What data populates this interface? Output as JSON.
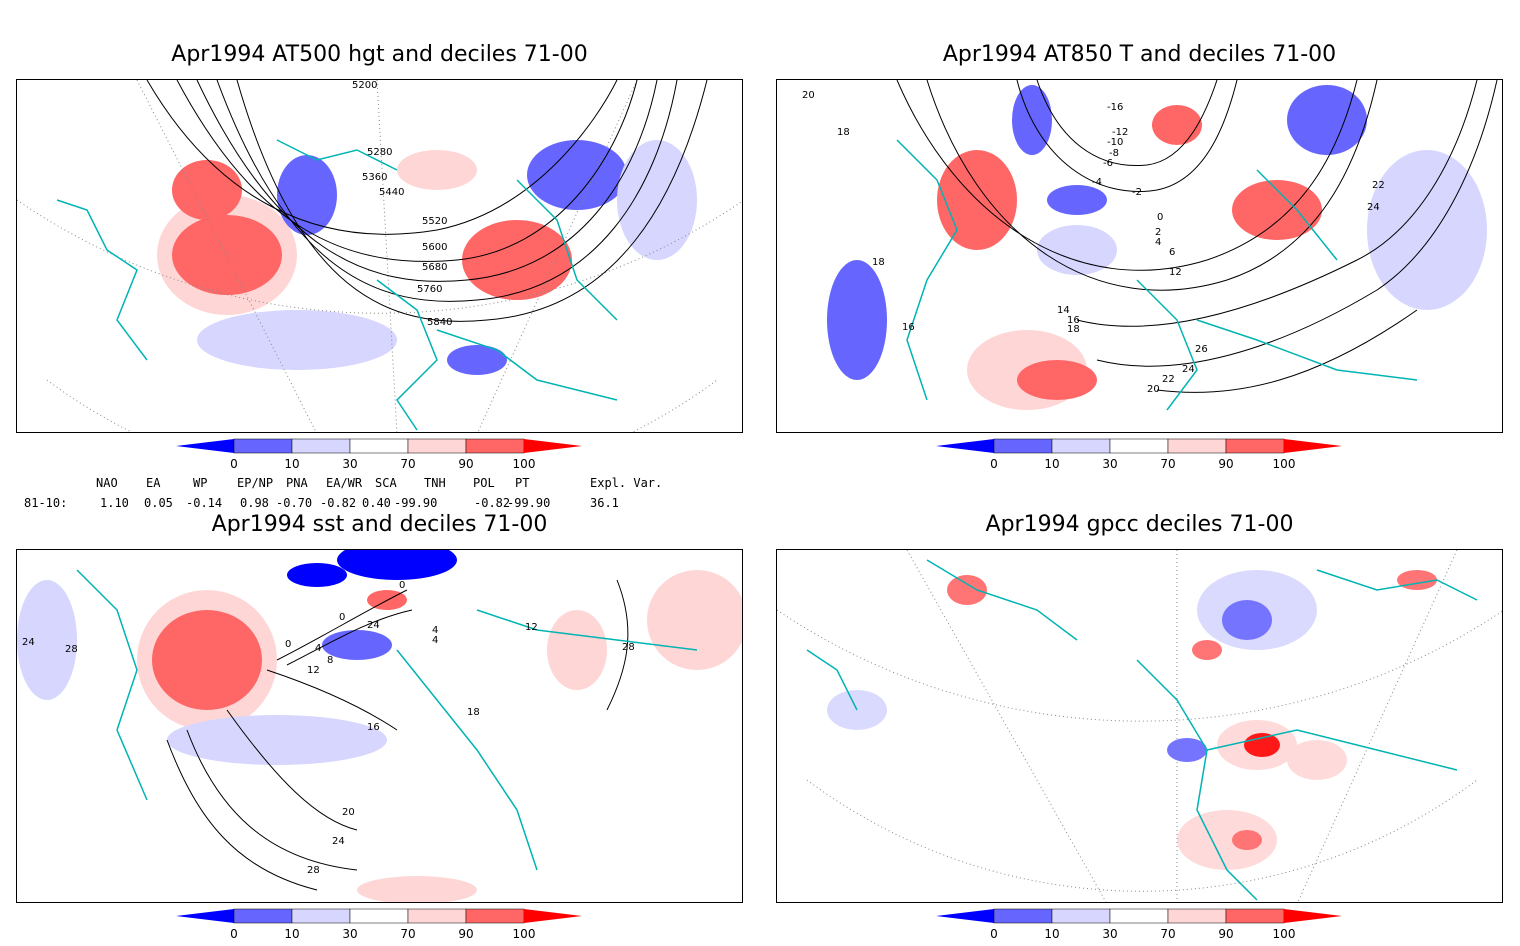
{
  "panels": [
    {
      "id": "p1",
      "title": "Apr1994 AT500 hgt and deciles 71-00",
      "contour_labels": [
        "5200",
        "5280",
        "5360",
        "5440",
        "5520",
        "5600",
        "5680",
        "5760",
        "5840"
      ]
    },
    {
      "id": "p2",
      "title": "Apr1994 AT850 T and deciles 71-00",
      "contour_labels": [
        "-16",
        "-12",
        "-10",
        "-8",
        "-6",
        "-4",
        "-2",
        "0",
        "2",
        "4",
        "6",
        "12",
        "14",
        "16",
        "18",
        "20",
        "22",
        "24",
        "26",
        "20",
        "22",
        "24",
        "16",
        "18",
        "18"
      ]
    },
    {
      "id": "p3",
      "title": "Apr1994 sst and deciles 71-00",
      "contour_labels": [
        "0",
        "0",
        "0",
        "4",
        "4",
        "8",
        "12",
        "16",
        "20",
        "24",
        "28",
        "24",
        "28",
        "28",
        "12",
        "18",
        "4",
        "24"
      ]
    },
    {
      "id": "p4",
      "title": "Apr1994 gpcc deciles 71-00",
      "contour_labels": []
    }
  ],
  "colorbar": {
    "ticks": [
      "0",
      "10",
      "30",
      "70",
      "90",
      "100"
    ],
    "colors": {
      "deep_blue": "#0000ff",
      "mid_blue": "#6666ff",
      "light_blue": "#d6d6ff",
      "white": "#ffffff",
      "light_red": "#ffd6d6",
      "mid_red": "#ff6666",
      "deep_red": "#ff0000"
    }
  },
  "indices": {
    "headers": [
      "NAO",
      "EA",
      "WP",
      "EP/NP",
      "PNA",
      "EA/WR",
      "SCA",
      "TNH",
      "POL",
      "PT",
      "Expl. Var."
    ],
    "row_label": "81-10:",
    "values": [
      "1.10",
      "0.05",
      "-0.14",
      "0.98",
      "-0.70",
      "-0.82",
      "0.40",
      "-99.90",
      "-0.82",
      "-99.90",
      "36.1"
    ]
  },
  "colors": {
    "coast": "#00b4b4",
    "grid": "#888888"
  }
}
